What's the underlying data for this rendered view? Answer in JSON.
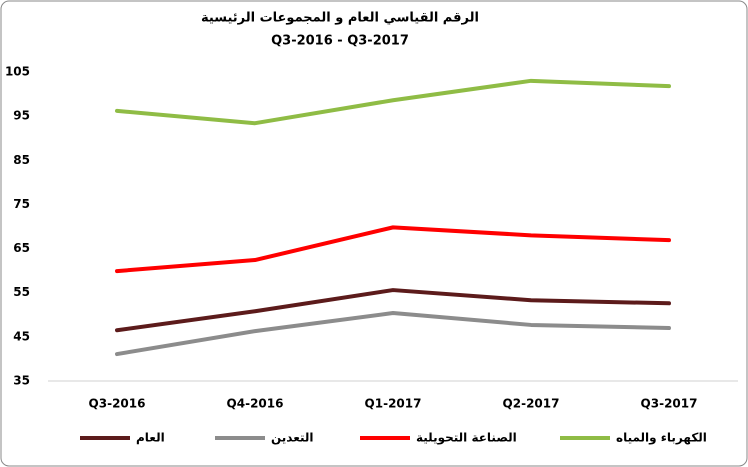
{
  "chart_data": {
    "type": "line",
    "title": "الرقم القياسي العام و المجموعات الرئيسية",
    "subtitle": "Q3-2016 - Q3-2017",
    "categories": [
      "Q3-2016",
      "Q4-2016",
      "Q1-2017",
      "Q2-2017",
      "Q3-2017"
    ],
    "series": [
      {
        "name": "العام",
        "color": "#5c1b1b",
        "values": [
          46.5,
          50.8,
          55.6,
          53.3,
          52.6
        ]
      },
      {
        "name": "التعدين",
        "color": "#8c8c8c",
        "values": [
          41.1,
          46.3,
          50.4,
          47.7,
          47
        ]
      },
      {
        "name": "الصناعة التحويلية",
        "color": "#ff0000",
        "values": [
          59.9,
          62.4,
          69.8,
          68,
          66.9
        ]
      },
      {
        "name": "الكهرباء والمياه",
        "color": "#8fbc45",
        "values": [
          96.2,
          93.4,
          98.6,
          103,
          101.8
        ]
      }
    ],
    "ylim": [
      35,
      105
    ],
    "yticks": [
      35,
      45,
      55,
      65,
      75,
      85,
      95,
      105
    ],
    "grid": false
  }
}
